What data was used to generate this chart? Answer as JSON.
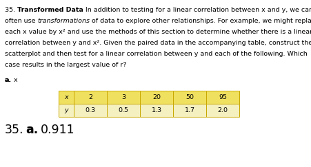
{
  "line1a": "35. ",
  "line1b": "Transformed Data",
  "line1c": " In addition to testing for a linear correlation between x and y, we can",
  "line2a": "often use ",
  "line2b": "transformations",
  "line2c": " of data to explore other relationships. For example, we might replace",
  "line3": "each x value by x² and use the methods of this section to determine whether there is a linear",
  "line4": "correlation between y and x². Given the paired data in the accompanying table, construct the",
  "line5": "scatterplot and then test for a linear correlation between y and each of the following. Which",
  "line6": "case results in the largest value of r?",
  "sub_a": "a.",
  "sub_x": " x",
  "table_x_values": [
    "x",
    "2",
    "3",
    "20",
    "50",
    "95"
  ],
  "table_y_values": [
    "y",
    "0.3",
    "0.5",
    "1.3",
    "1.7",
    "2.0"
  ],
  "table_header_bg": "#f0e060",
  "table_row_bg": "#f5f0c0",
  "table_border_color": "#c8a800",
  "answer_num": "35.",
  "answer_a": "a.",
  "answer_val": "0.911",
  "bg_color": "#ffffff",
  "text_color": "#000000",
  "font_size_body": 6.8,
  "font_size_answer": 12.5
}
